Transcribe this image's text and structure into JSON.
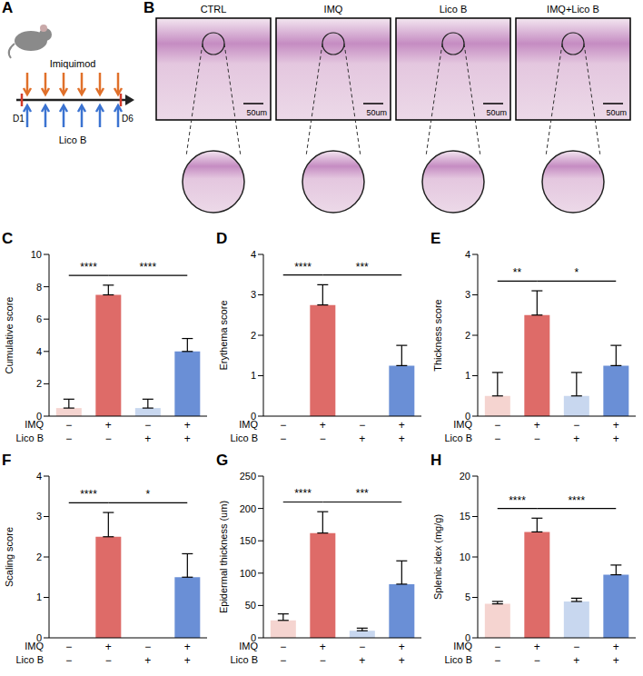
{
  "schematic": {
    "panel": "A",
    "treatment_1": "Imiquimod",
    "treatment_2": "Lico B",
    "start": "D1",
    "end": "D6",
    "doses": 6
  },
  "histology": {
    "panel": "B",
    "groups": [
      "CTRL",
      "IMQ",
      "Lico B",
      "IMQ+Lico B"
    ],
    "scale_bar": "50um"
  },
  "chart_data": [
    {
      "panel": "C",
      "type": "bar",
      "y_label": "Cumulative score",
      "conditions": [
        {
          "label": "IMQ",
          "values": [
            "−",
            "+",
            "−",
            "+"
          ]
        },
        {
          "label": "Lico B",
          "values": [
            "−",
            "−",
            "+",
            "+"
          ]
        }
      ],
      "values": [
        0.5,
        7.5,
        0.5,
        4
      ],
      "errors": [
        0.55,
        0.6,
        0.55,
        0.8
      ],
      "colors": [
        "#f5d4d0",
        "#de6b68",
        "#c8d7ef",
        "#6a8fd6"
      ],
      "ylim": [
        0,
        10
      ],
      "yticks": [
        0,
        2,
        4,
        6,
        8,
        10
      ],
      "comparisons": [
        {
          "groups": [
            0,
            1
          ],
          "label": "****"
        },
        {
          "groups": [
            1,
            3
          ],
          "label": "****"
        }
      ]
    },
    {
      "panel": "D",
      "type": "bar",
      "y_label": "Erythema score",
      "conditions": [
        {
          "label": "IMQ",
          "values": [
            "−",
            "+",
            "−",
            "+"
          ]
        },
        {
          "label": "Lico B",
          "values": [
            "−",
            "−",
            "+",
            "+"
          ]
        }
      ],
      "values": [
        0,
        2.75,
        0,
        1.25
      ],
      "errors": [
        0,
        0.5,
        0,
        0.5
      ],
      "colors": [
        "#f5d4d0",
        "#de6b68",
        "#c8d7ef",
        "#6a8fd6"
      ],
      "ylim": [
        0,
        4
      ],
      "yticks": [
        0,
        1,
        2,
        3,
        4
      ],
      "comparisons": [
        {
          "groups": [
            0,
            1
          ],
          "label": "****"
        },
        {
          "groups": [
            1,
            3
          ],
          "label": "***"
        }
      ]
    },
    {
      "panel": "E",
      "type": "bar",
      "y_label": "Thickness score",
      "conditions": [
        {
          "label": "IMQ",
          "values": [
            "−",
            "+",
            "−",
            "+"
          ]
        },
        {
          "label": "Lico B",
          "values": [
            "−",
            "−",
            "+",
            "+"
          ]
        }
      ],
      "values": [
        0.5,
        2.5,
        0.5,
        1.25
      ],
      "errors": [
        0.58,
        0.6,
        0.58,
        0.5
      ],
      "colors": [
        "#f5d4d0",
        "#de6b68",
        "#c8d7ef",
        "#6a8fd6"
      ],
      "ylim": [
        0,
        4
      ],
      "yticks": [
        0,
        1,
        2,
        3,
        4
      ],
      "comparisons": [
        {
          "groups": [
            0,
            1
          ],
          "label": "**"
        },
        {
          "groups": [
            1,
            3
          ],
          "label": "*"
        }
      ]
    },
    {
      "panel": "F",
      "type": "bar",
      "y_label": "Scaling score",
      "conditions": [
        {
          "label": "IMQ",
          "values": [
            "−",
            "+",
            "−",
            "+"
          ]
        },
        {
          "label": "Lico B",
          "values": [
            "−",
            "−",
            "+",
            "+"
          ]
        }
      ],
      "values": [
        0,
        2.5,
        0,
        1.5
      ],
      "errors": [
        0,
        0.6,
        0,
        0.58
      ],
      "colors": [
        "#f5d4d0",
        "#de6b68",
        "#c8d7ef",
        "#6a8fd6"
      ],
      "ylim": [
        0,
        4
      ],
      "yticks": [
        0,
        1,
        2,
        3,
        4
      ],
      "comparisons": [
        {
          "groups": [
            0,
            1
          ],
          "label": "****"
        },
        {
          "groups": [
            1,
            3
          ],
          "label": "*"
        }
      ]
    },
    {
      "panel": "G",
      "type": "bar",
      "y_label": "Epidermal thickness (um)",
      "conditions": [
        {
          "label": "IMQ",
          "values": [
            "−",
            "+",
            "−",
            "+"
          ]
        },
        {
          "label": "Lico B",
          "values": [
            "−",
            "−",
            "+",
            "+"
          ]
        }
      ],
      "values": [
        27,
        162,
        11,
        83
      ],
      "errors": [
        10,
        33,
        4,
        36
      ],
      "colors": [
        "#f5d4d0",
        "#de6b68",
        "#c8d7ef",
        "#6a8fd6"
      ],
      "ylim": [
        0,
        250
      ],
      "yticks": [
        0,
        50,
        100,
        150,
        200,
        250
      ],
      "comparisons": [
        {
          "groups": [
            0,
            1
          ],
          "label": "****"
        },
        {
          "groups": [
            1,
            3
          ],
          "label": "***"
        }
      ]
    },
    {
      "panel": "H",
      "type": "bar",
      "y_label": "Splenic idex (mg/g)",
      "conditions": [
        {
          "label": "IMQ",
          "values": [
            "−",
            "+",
            "−",
            "+"
          ]
        },
        {
          "label": "Lico B",
          "values": [
            "−",
            "−",
            "+",
            "+"
          ]
        }
      ],
      "values": [
        4.2,
        13.1,
        4.5,
        7.8
      ],
      "errors": [
        0.3,
        1.7,
        0.4,
        1.2
      ],
      "colors": [
        "#f5d4d0",
        "#de6b68",
        "#c8d7ef",
        "#6a8fd6"
      ],
      "ylim": [
        0,
        20
      ],
      "yticks": [
        0,
        5,
        10,
        15,
        20
      ],
      "comparisons": [
        {
          "groups": [
            0,
            1
          ],
          "label": "****"
        },
        {
          "groups": [
            1,
            3
          ],
          "label": "****"
        }
      ]
    }
  ]
}
